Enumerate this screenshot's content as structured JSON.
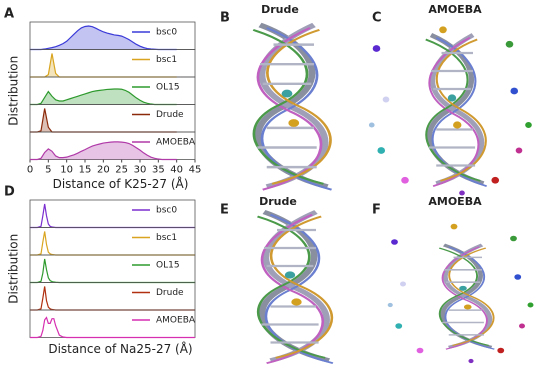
{
  "chart_data": [
    {
      "type": "ridge",
      "panel_label": "A",
      "ylabel": "Distribution",
      "xlabel": "Distance of K25-27 (Å)",
      "xlim": [
        0,
        45
      ],
      "xticks": [
        0,
        5,
        10,
        15,
        20,
        25,
        30,
        35,
        40,
        45
      ],
      "filled": true,
      "x": [
        0,
        1,
        2,
        3,
        4,
        5,
        6,
        7,
        8,
        9,
        10,
        11,
        12,
        13,
        14,
        15,
        16,
        17,
        18,
        19,
        20,
        21,
        22,
        23,
        24,
        25,
        26,
        27,
        28,
        29,
        30,
        31,
        32,
        33,
        34,
        35,
        36,
        37,
        38,
        39,
        40
      ],
      "series": [
        {
          "name": "bsc0",
          "color": "#3a3ad8",
          "values": [
            0,
            0,
            0,
            0,
            0.02,
            0.05,
            0.08,
            0.12,
            0.18,
            0.25,
            0.35,
            0.5,
            0.65,
            0.8,
            0.92,
            0.98,
            1,
            0.97,
            0.9,
            0.82,
            0.75,
            0.7,
            0.66,
            0.62,
            0.6,
            0.57,
            0.5,
            0.42,
            0.32,
            0.22,
            0.14,
            0.08,
            0.04,
            0.02,
            0.01,
            0,
            0,
            0,
            0,
            0,
            0
          ]
        },
        {
          "name": "bsc1",
          "color": "#d9a520",
          "values": [
            0,
            0,
            0,
            0,
            0,
            0.1,
            1,
            0.15,
            0,
            0,
            0,
            0,
            0,
            0,
            0,
            0,
            0,
            0,
            0,
            0,
            0,
            0,
            0,
            0,
            0,
            0,
            0,
            0,
            0,
            0,
            0,
            0,
            0,
            0,
            0,
            0,
            0,
            0,
            0,
            0,
            0
          ]
        },
        {
          "name": "OL15",
          "color": "#2e9a2e",
          "values": [
            0,
            0,
            0,
            0.05,
            0.3,
            0.55,
            0.35,
            0.2,
            0.15,
            0.15,
            0.2,
            0.25,
            0.3,
            0.35,
            0.4,
            0.45,
            0.5,
            0.55,
            0.58,
            0.6,
            0.62,
            0.64,
            0.65,
            0.66,
            0.66,
            0.65,
            0.6,
            0.52,
            0.4,
            0.28,
            0.18,
            0.1,
            0.05,
            0.02,
            0,
            0,
            0,
            0,
            0,
            0,
            0
          ]
        },
        {
          "name": "Drude",
          "color": "#8b2a0a",
          "values": [
            0,
            0,
            0,
            0.05,
            1,
            0.2,
            0,
            0,
            0,
            0,
            0,
            0,
            0,
            0,
            0,
            0,
            0,
            0,
            0,
            0,
            0,
            0,
            0,
            0,
            0,
            0,
            0,
            0,
            0,
            0,
            0,
            0,
            0,
            0,
            0,
            0,
            0,
            0,
            0,
            0,
            0
          ]
        },
        {
          "name": "AMOEBA",
          "color": "#b03aa8",
          "values": [
            0,
            0,
            0,
            0.05,
            0.3,
            0.45,
            0.35,
            0.15,
            0.08,
            0.08,
            0.1,
            0.15,
            0.2,
            0.27,
            0.35,
            0.42,
            0.5,
            0.57,
            0.62,
            0.66,
            0.7,
            0.72,
            0.74,
            0.75,
            0.75,
            0.74,
            0.72,
            0.68,
            0.6,
            0.5,
            0.4,
            0.28,
            0.18,
            0.1,
            0.05,
            0.02,
            0,
            0,
            0,
            0,
            0
          ]
        }
      ]
    },
    {
      "type": "ridge",
      "panel_label": "D",
      "ylabel": "Distribution",
      "xlabel": "Distance of Na25-27 (Å)",
      "xlim": [
        0,
        45
      ],
      "filled": false,
      "x": [
        0,
        1,
        2,
        3,
        3.5,
        4,
        4.5,
        5,
        5.5,
        6,
        6.5,
        7,
        8,
        9,
        10,
        45
      ],
      "series": [
        {
          "name": "bsc0",
          "color": "#7a2ed0",
          "values": [
            0,
            0,
            0,
            0.05,
            0.5,
            1,
            0.5,
            0.15,
            0.05,
            0.02,
            0.01,
            0,
            0,
            0,
            0,
            0
          ]
        },
        {
          "name": "bsc1",
          "color": "#d9a520",
          "values": [
            0,
            0,
            0,
            0.05,
            0.55,
            1,
            0.45,
            0.12,
            0.05,
            0.02,
            0.01,
            0,
            0,
            0,
            0,
            0
          ]
        },
        {
          "name": "OL15",
          "color": "#2e9a2e",
          "values": [
            0,
            0,
            0,
            0.05,
            0.4,
            1,
            0.55,
            0.2,
            0.08,
            0.04,
            0.02,
            0.01,
            0,
            0,
            0,
            0
          ]
        },
        {
          "name": "Drude",
          "color": "#b03010",
          "values": [
            0,
            0,
            0,
            0.05,
            0.5,
            1,
            0.4,
            0.12,
            0.05,
            0.02,
            0.01,
            0,
            0,
            0,
            0,
            0
          ]
        },
        {
          "name": "AMOEBA",
          "color": "#d62fb0",
          "values": [
            0,
            0,
            0,
            0.05,
            0.3,
            0.75,
            0.85,
            0.6,
            0.6,
            0.8,
            0.8,
            0.5,
            0.1,
            0.02,
            0,
            0
          ]
        }
      ]
    }
  ],
  "images": [
    {
      "label": "B",
      "title": "Drude"
    },
    {
      "label": "C",
      "title": "AMOEBA"
    },
    {
      "label": "E",
      "title": "Drude"
    },
    {
      "label": "F",
      "title": "AMOEBA"
    }
  ]
}
